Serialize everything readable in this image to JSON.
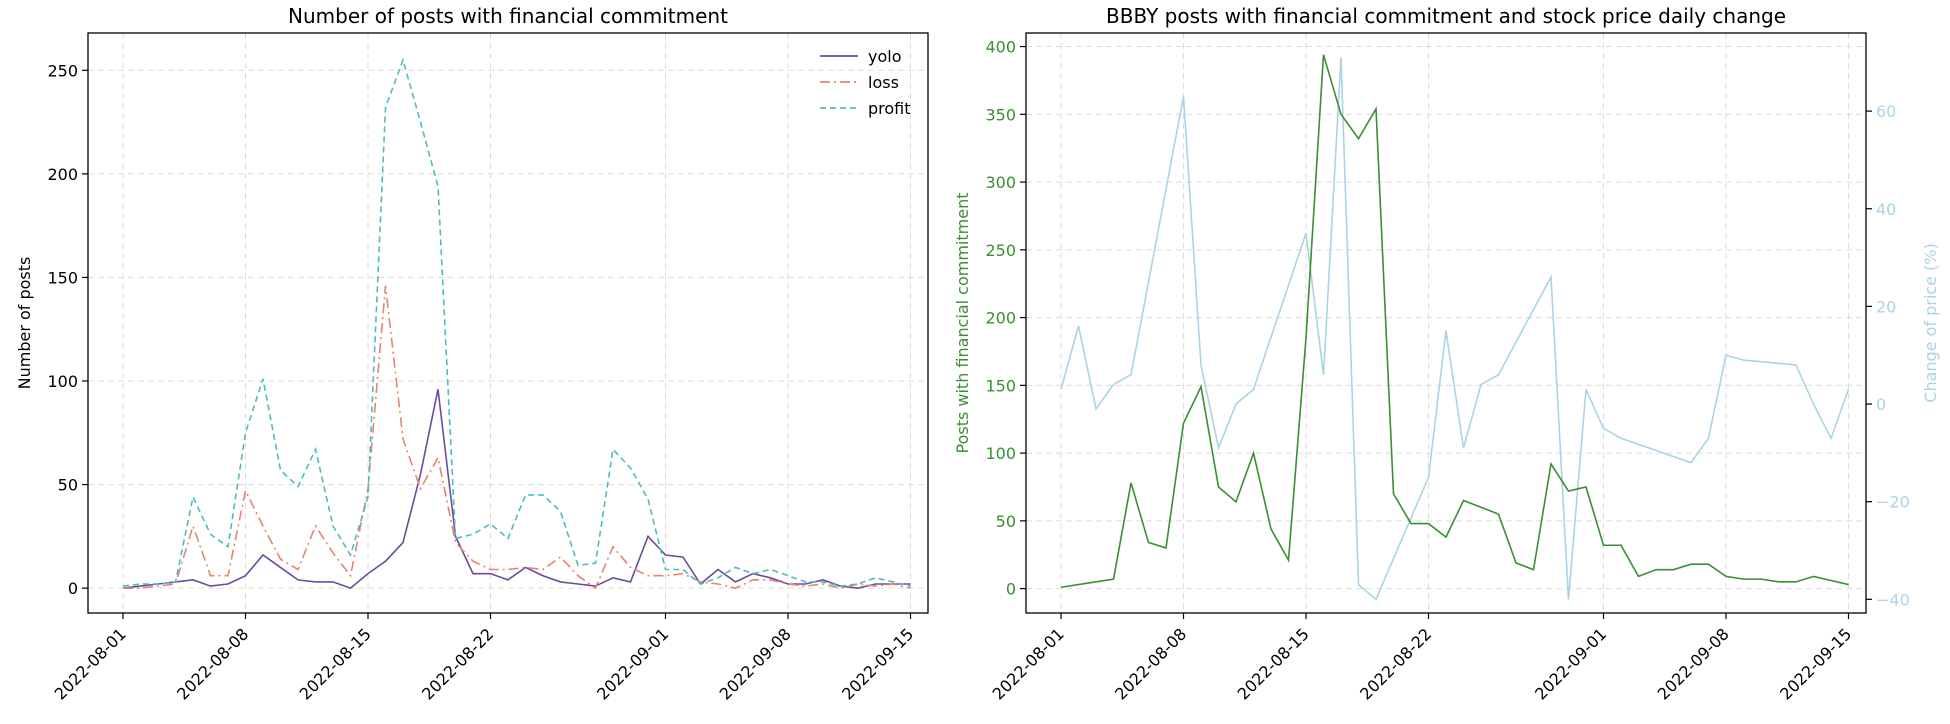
{
  "chart_data": [
    {
      "type": "line",
      "title": "Number of posts with financial commitment",
      "ylabel": "Number of posts",
      "xlabel": "",
      "xlim": [
        "2022-07-30",
        "2022-09-16"
      ],
      "ylim": [
        -12,
        268
      ],
      "yticks": [
        0,
        50,
        100,
        150,
        200,
        250
      ],
      "xticks": [
        "2022-08-01",
        "2022-08-08",
        "2022-08-15",
        "2022-08-22",
        "2022-09-01",
        "2022-09-08",
        "2022-09-15"
      ],
      "grid": true,
      "legend": "top-right",
      "x": [
        "2022-08-01",
        "2022-08-02",
        "2022-08-03",
        "2022-08-04",
        "2022-08-05",
        "2022-08-06",
        "2022-08-07",
        "2022-08-08",
        "2022-08-09",
        "2022-08-10",
        "2022-08-11",
        "2022-08-12",
        "2022-08-13",
        "2022-08-14",
        "2022-08-15",
        "2022-08-16",
        "2022-08-17",
        "2022-08-18",
        "2022-08-19",
        "2022-08-20",
        "2022-08-21",
        "2022-08-22",
        "2022-08-23",
        "2022-08-24",
        "2022-08-25",
        "2022-08-26",
        "2022-08-27",
        "2022-08-28",
        "2022-08-29",
        "2022-08-30",
        "2022-08-31",
        "2022-09-01",
        "2022-09-02",
        "2022-09-03",
        "2022-09-04",
        "2022-09-05",
        "2022-09-06",
        "2022-09-07",
        "2022-09-08",
        "2022-09-09",
        "2022-09-10",
        "2022-09-11",
        "2022-09-12",
        "2022-09-13",
        "2022-09-14",
        "2022-09-15"
      ],
      "series": [
        {
          "name": "yolo",
          "color": "#6a4c9c",
          "dash": "",
          "values": [
            0,
            1,
            2,
            3,
            4,
            1,
            2,
            6,
            16,
            10,
            4,
            3,
            3,
            0,
            7,
            13,
            22,
            55,
            96,
            25,
            7,
            7,
            4,
            10,
            6,
            3,
            2,
            1,
            5,
            3,
            25,
            16,
            15,
            2,
            9,
            3,
            7,
            5,
            2,
            2,
            4,
            1,
            0,
            2,
            2,
            2
          ]
        },
        {
          "name": "loss",
          "color": "#e8836f",
          "dash": "10 4 2 4",
          "values": [
            0,
            0,
            1,
            2,
            30,
            6,
            6,
            47,
            30,
            14,
            9,
            30,
            17,
            6,
            48,
            146,
            72,
            48,
            63,
            22,
            13,
            9,
            9,
            10,
            9,
            15,
            6,
            0,
            20,
            10,
            6,
            6,
            7,
            3,
            2,
            0,
            4,
            4,
            2,
            1,
            2,
            0,
            2,
            1,
            2,
            0
          ]
        },
        {
          "name": "profit",
          "color": "#4dbcbc",
          "dash": "6 4",
          "values": [
            1,
            2,
            2,
            3,
            44,
            26,
            20,
            75,
            101,
            57,
            49,
            67,
            30,
            16,
            44,
            232,
            255,
            225,
            194,
            24,
            26,
            31,
            24,
            45,
            45,
            37,
            11,
            12,
            67,
            58,
            43,
            9,
            9,
            2,
            5,
            10,
            7,
            9,
            6,
            3,
            3,
            1,
            2,
            5,
            3,
            1
          ]
        }
      ]
    },
    {
      "type": "line",
      "title": "BBBY posts with financial commitment and stock price daily change",
      "ylabel": "Posts with financial commitment",
      "y2label": "Change of price (%)",
      "xlabel": "",
      "xlim": [
        "2022-07-30",
        "2022-09-16"
      ],
      "ylim": [
        -18,
        410
      ],
      "yticks": [
        0,
        50,
        100,
        150,
        200,
        250,
        300,
        350,
        400
      ],
      "y2lim": [
        -42.8,
        76
      ],
      "y2ticks": [
        -40,
        -20,
        0,
        20,
        40,
        60
      ],
      "xticks": [
        "2022-08-01",
        "2022-08-08",
        "2022-08-15",
        "2022-08-22",
        "2022-09-01",
        "2022-09-08",
        "2022-09-15"
      ],
      "grid": true,
      "posts": {
        "color": "#3a8f32",
        "x": [
          "2022-08-01",
          "2022-08-02",
          "2022-08-03",
          "2022-08-04",
          "2022-08-05",
          "2022-08-06",
          "2022-08-07",
          "2022-08-08",
          "2022-08-09",
          "2022-08-10",
          "2022-08-11",
          "2022-08-12",
          "2022-08-13",
          "2022-08-14",
          "2022-08-15",
          "2022-08-16",
          "2022-08-17",
          "2022-08-18",
          "2022-08-19",
          "2022-08-20",
          "2022-08-21",
          "2022-08-22",
          "2022-08-23",
          "2022-08-24",
          "2022-08-25",
          "2022-08-26",
          "2022-08-27",
          "2022-08-28",
          "2022-08-29",
          "2022-08-30",
          "2022-08-31",
          "2022-09-01",
          "2022-09-02",
          "2022-09-03",
          "2022-09-04",
          "2022-09-05",
          "2022-09-06",
          "2022-09-07",
          "2022-09-08",
          "2022-09-09",
          "2022-09-10",
          "2022-09-11",
          "2022-09-12",
          "2022-09-13",
          "2022-09-14",
          "2022-09-15"
        ],
        "values": [
          1,
          3,
          5,
          7,
          78,
          34,
          30,
          122,
          149,
          75,
          64,
          100,
          44,
          21,
          185,
          394,
          350,
          332,
          354,
          70,
          48,
          48,
          38,
          65,
          60,
          55,
          19,
          14,
          92,
          72,
          75,
          32,
          32,
          9,
          14,
          14,
          18,
          18,
          9,
          7,
          7,
          5,
          5,
          9,
          6,
          3
        ]
      },
      "price_change": {
        "color": "#aad4e6",
        "x": [
          "2022-08-01",
          "2022-08-02",
          "2022-08-03",
          "2022-08-04",
          "2022-08-05",
          "2022-08-08",
          "2022-08-09",
          "2022-08-10",
          "2022-08-11",
          "2022-08-12",
          "2022-08-15",
          "2022-08-16",
          "2022-08-17",
          "2022-08-18",
          "2022-08-19",
          "2022-08-22",
          "2022-08-23",
          "2022-08-24",
          "2022-08-25",
          "2022-08-26",
          "2022-08-29",
          "2022-08-30",
          "2022-08-31",
          "2022-09-01",
          "2022-09-02",
          "2022-09-06",
          "2022-09-07",
          "2022-09-08",
          "2022-09-09",
          "2022-09-12",
          "2022-09-13",
          "2022-09-14",
          "2022-09-15"
        ],
        "values": [
          3,
          16,
          -1,
          4,
          6,
          63,
          8,
          -9,
          0,
          3,
          35,
          6,
          71,
          -37,
          -40,
          -15,
          15,
          -9,
          4,
          6,
          26,
          -40,
          3,
          -5,
          -7,
          -12,
          -7,
          10,
          9,
          8,
          0,
          -7,
          3
        ]
      }
    }
  ],
  "legend": {
    "yolo": "yolo",
    "loss": "loss",
    "profit": "profit"
  }
}
